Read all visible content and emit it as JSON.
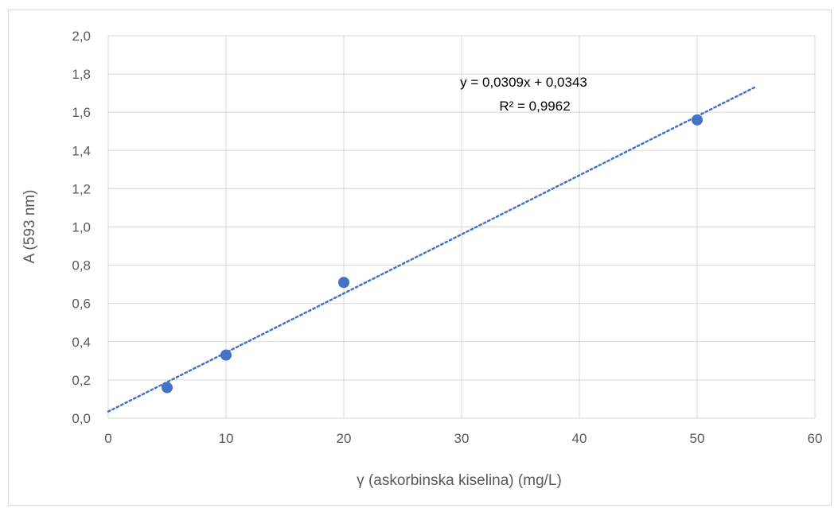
{
  "chart_data": {
    "type": "scatter",
    "title": "",
    "xlabel": "γ (askorbinska kiselina) (mg/L)",
    "ylabel": "A (593 nm)",
    "xlim": [
      0,
      60
    ],
    "ylim": [
      0,
      2.0
    ],
    "x_ticks": [
      "0",
      "10",
      "20",
      "30",
      "40",
      "50",
      "60"
    ],
    "y_ticks": [
      "0,0",
      "0,2",
      "0,4",
      "0,6",
      "0,8",
      "1,0",
      "1,2",
      "1,4",
      "1,6",
      "1,8",
      "2,0"
    ],
    "grid": true,
    "series": [
      {
        "points": [
          {
            "x": 5,
            "y": 0.16
          },
          {
            "x": 10,
            "y": 0.33
          },
          {
            "x": 20,
            "y": 0.71
          },
          {
            "x": 50,
            "y": 1.56
          }
        ],
        "color": "#4472c4"
      }
    ],
    "trendline": {
      "type": "linear",
      "slope": 0.0309,
      "intercept": 0.0343,
      "x_range": [
        0,
        55
      ],
      "style": "dotted",
      "color": "#4472c4",
      "equation": "y = 0,0309x + 0,0343",
      "r_squared": "R² = 0,9962"
    }
  }
}
